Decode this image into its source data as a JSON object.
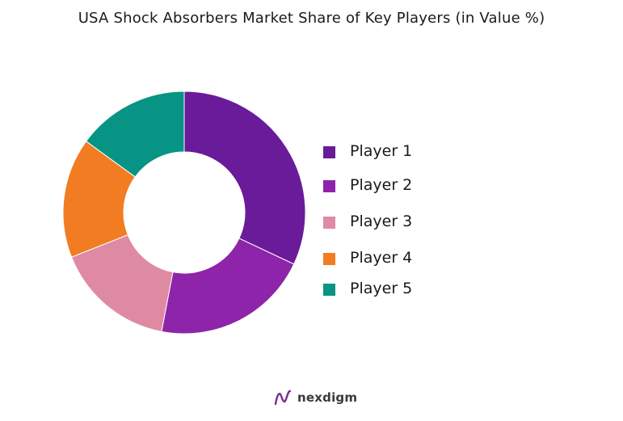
{
  "chart_data": {
    "type": "pie",
    "title": "USA Shock Absorbers Market Share of Key Players (in Value %)",
    "categories": [
      "Player 1",
      "Player 2",
      "Player 3",
      "Player 4",
      "Player 5"
    ],
    "values": [
      32,
      21,
      16,
      16,
      15
    ],
    "colors": [
      "#6a1b9a",
      "#8e24aa",
      "#df8aa3",
      "#f27c22",
      "#079484"
    ],
    "donut": true,
    "legend_position": "right"
  },
  "brand": {
    "name": "nexdigm",
    "logo_icon": "nexdigm-logo-icon",
    "color": "#7b2d8e"
  }
}
